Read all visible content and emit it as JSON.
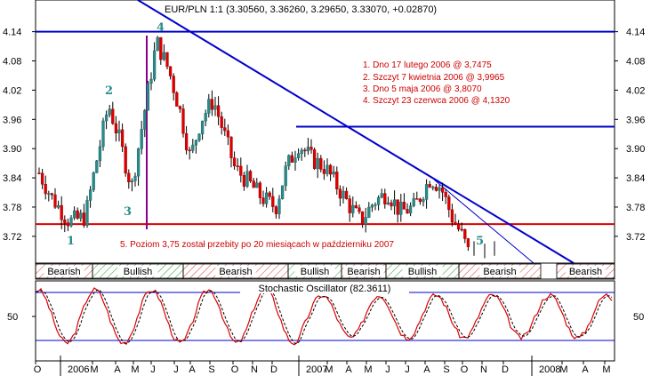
{
  "chart_data": {
    "type": "candlestick",
    "title": "EUR/PLN 1:1 (3.30560, 3.36260, 3.29650, 3.33070, +0.02870)",
    "y_ticks": [
      3.72,
      3.78,
      3.84,
      3.9,
      3.96,
      4.02,
      4.08,
      4.14
    ],
    "ylim": [
      3.665,
      4.205
    ],
    "x_month_labels": [
      "O",
      "2006",
      "M",
      "A",
      "M",
      "J",
      "J",
      "A",
      "S",
      "O",
      "N",
      "D",
      "2007",
      "M",
      "A",
      "M",
      "J",
      "J",
      "A",
      "S",
      "O",
      "N",
      "D",
      "2008",
      "M",
      "A",
      "M"
    ],
    "colors": {
      "up": "#2b8a8a",
      "down": "#dd0000",
      "trend": "#0000cc",
      "support": "#dd0000",
      "wick": "#000000"
    },
    "horizontal_levels": [
      {
        "value": 4.14,
        "color": "#0000cc"
      },
      {
        "value": 3.945,
        "color": "#0000cc"
      },
      {
        "value": 3.745,
        "color": "#dd0000"
      }
    ],
    "annotations": [
      "1. Dno 17 lutego 2006 @ 3,7475",
      "2. Szczyt 7 kwietnia 2006 @ 3,9965",
      "3. Dno 5 maja 2006 @ 3,8070",
      "4. Szczyt 23 czerwca 2006 @ 4,1320"
    ],
    "breakout_note": "5. Poziom 3,75 został przebity po 20 miesiącach w październiku 2007",
    "wave_labels": [
      "1",
      "2",
      "3",
      "4",
      "5"
    ],
    "regimes": [
      "Bearish",
      "Bullish",
      "Bearish",
      "Bullish",
      "Bearish",
      "Bullish",
      "Bearish",
      "Bearish"
    ],
    "oscillator": {
      "title": "Stochastic Oscillator (82.3611)",
      "tick_label": "50",
      "line_colors": {
        "k": "#dd0000",
        "d": "#000000",
        "bands": "#0000cc"
      }
    }
  }
}
